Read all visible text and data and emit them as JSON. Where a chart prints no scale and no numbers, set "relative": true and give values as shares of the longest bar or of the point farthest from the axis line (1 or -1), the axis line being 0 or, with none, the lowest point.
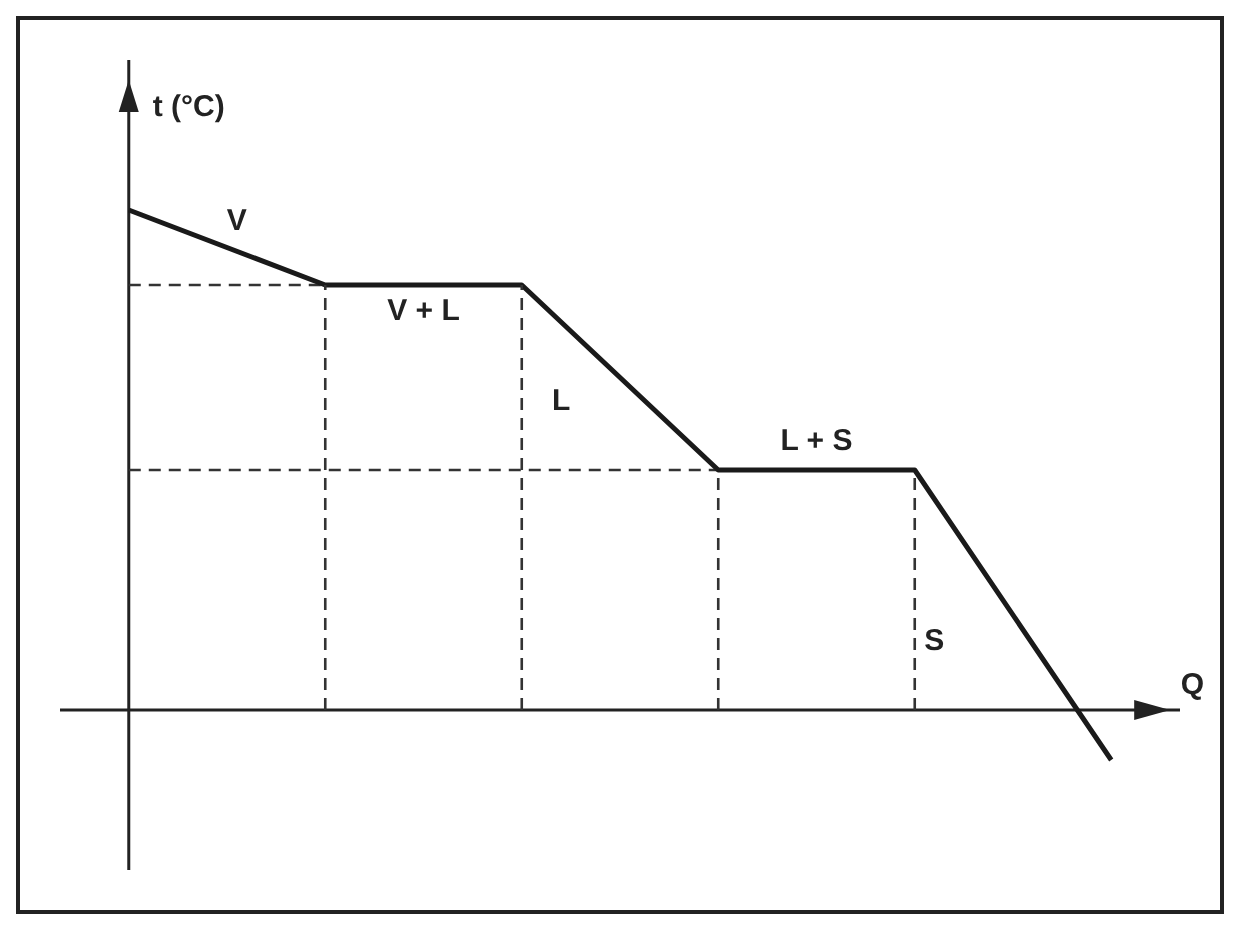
{
  "chart_data": {
    "type": "line",
    "relative": true,
    "xlabel": "Q",
    "ylabel": "t (°C)",
    "categories": [
      null,
      null,
      null,
      null,
      null,
      null
    ],
    "series": [
      {
        "color": "#1a1a1a",
        "values": [
          1,
          0.85,
          0.85,
          0.48,
          0.48,
          -0.1
        ]
      }
    ],
    "ref_lines": [
      {
        "axis": "y",
        "value": 0.85,
        "line_style": "dashed",
        "color": "#333333"
      },
      {
        "axis": "y",
        "value": 0.48,
        "line_style": "dashed",
        "color": "#333333"
      }
    ],
    "annotations": [
      "V",
      "V + L",
      "L",
      "L + S",
      "S"
    ],
    "marker": "none",
    "tick_labels": false,
    "line_style": "solid"
  }
}
